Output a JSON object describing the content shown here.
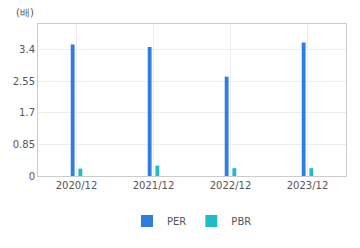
{
  "chart_data": {
    "type": "bar",
    "ylabel": "(배)",
    "categories": [
      "2020/12",
      "2021/12",
      "2022/12",
      "2023/12"
    ],
    "series": [
      {
        "name": "PER",
        "color": "#2f7de1",
        "values": [
          3.55,
          3.48,
          2.68,
          3.6
        ]
      },
      {
        "name": "PBR",
        "color": "#1ebcc6",
        "values": [
          0.2,
          0.28,
          0.21,
          0.21
        ]
      }
    ],
    "ylim": [
      0,
      4.1
    ],
    "yticks": [
      0,
      0.85,
      1.7,
      2.55,
      3.4
    ],
    "grid": true,
    "legend": "bottom"
  }
}
